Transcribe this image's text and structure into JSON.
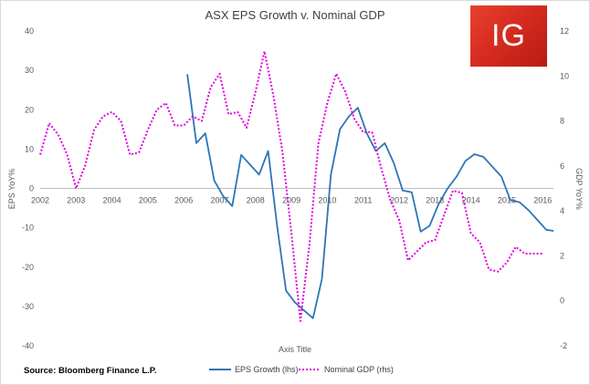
{
  "logo": {
    "text": "IG",
    "color": "#d7261a"
  },
  "source_note": "Source: Bloomberg Finance L.P.",
  "chart_data": {
    "type": "line",
    "title": "ASX EPS Growth v. Nominal GDP",
    "xlabel": "Axis Title",
    "ylabel": "EPS YoY%",
    "y2label": "GDP YoY%",
    "ylim": [
      -40,
      40
    ],
    "y2lim": [
      -2,
      12
    ],
    "xlim": [
      2002,
      2016.3
    ],
    "yticks": [
      "40",
      "30",
      "20",
      "10",
      "0",
      "-10",
      "-20",
      "-30",
      "-40"
    ],
    "yticks_values": [
      40,
      30,
      20,
      10,
      0,
      -10,
      -20,
      -30,
      -40
    ],
    "y2ticks": [
      "12",
      "10",
      "8",
      "6",
      "4",
      "2",
      "0",
      "-2"
    ],
    "y2ticks_values": [
      12,
      10,
      8,
      6,
      4,
      2,
      0,
      -2
    ],
    "xticks": [
      "2002",
      "2003",
      "2004",
      "2005",
      "2006",
      "2007",
      "2008",
      "2009",
      "2010",
      "2011",
      "2012",
      "2013",
      "2014",
      "2015",
      "2016"
    ],
    "xticks_values": [
      2002,
      2003,
      2004,
      2005,
      2006,
      2007,
      2008,
      2009,
      2010,
      2011,
      2012,
      2013,
      2014,
      2015,
      2016
    ],
    "legend_position": "bottom",
    "series": [
      {
        "name": "EPS Growth (lhs)",
        "axis": "left",
        "color": "#2e75b6",
        "style": "solid",
        "x": [
          2006.1,
          2006.35,
          2006.6,
          2006.85,
          2007.1,
          2007.35,
          2007.6,
          2007.85,
          2008.1,
          2008.35,
          2008.6,
          2008.85,
          2009.1,
          2009.6,
          2009.85,
          2010.1,
          2010.35,
          2010.6,
          2010.85,
          2011.1,
          2011.35,
          2011.6,
          2011.85,
          2012.1,
          2012.35,
          2012.6,
          2012.85,
          2013.1,
          2013.35,
          2013.6,
          2013.85,
          2014.1,
          2014.35,
          2014.6,
          2014.85,
          2015.1,
          2015.35,
          2015.6,
          2015.85,
          2016.1,
          2016.3
        ],
        "y": [
          29,
          11.5,
          14,
          2,
          -2,
          -4.5,
          8.5,
          6,
          3.5,
          9.5,
          -9.5,
          -26,
          -29,
          -33,
          -23,
          3.5,
          15,
          18.3,
          20.5,
          14,
          9.5,
          11.5,
          6.5,
          -0.5,
          -1,
          -11,
          -9.5,
          -4,
          0,
          3,
          7,
          8.7,
          8,
          5.5,
          3,
          -3,
          -3.5,
          -5.5,
          -8,
          -10.5,
          -10.8
        ]
      },
      {
        "name": "Nominal GDP (rhs)",
        "axis": "right",
        "color": "#e000e0",
        "style": "dotted",
        "x": [
          2002.0,
          2002.25,
          2002.5,
          2002.75,
          2003.0,
          2003.25,
          2003.5,
          2003.75,
          2004.0,
          2004.25,
          2004.5,
          2004.75,
          2005.0,
          2005.25,
          2005.5,
          2005.75,
          2006.0,
          2006.25,
          2006.5,
          2006.75,
          2007.0,
          2007.25,
          2007.5,
          2007.75,
          2008.0,
          2008.25,
          2008.5,
          2008.75,
          2009.0,
          2009.25,
          2009.5,
          2009.75,
          2010.0,
          2010.25,
          2010.5,
          2010.75,
          2011.0,
          2011.25,
          2011.5,
          2011.75,
          2012.0,
          2012.25,
          2012.5,
          2012.75,
          2013.0,
          2013.25,
          2013.5,
          2013.75,
          2014.0,
          2014.25,
          2014.5,
          2014.75,
          2015.0,
          2015.25,
          2015.5,
          2015.75,
          2016.0
        ],
        "y": [
          6.5,
          7.9,
          7.4,
          6.5,
          5.0,
          6.0,
          7.6,
          8.2,
          8.4,
          8.0,
          6.5,
          6.6,
          7.6,
          8.5,
          8.8,
          7.8,
          7.8,
          8.2,
          8.0,
          9.5,
          10.1,
          8.3,
          8.4,
          7.7,
          9.3,
          11.1,
          9.1,
          6.6,
          3.0,
          -0.9,
          2.5,
          7.0,
          8.8,
          10.1,
          9.3,
          8.1,
          7.5,
          7.5,
          5.9,
          4.5,
          3.6,
          1.8,
          2.2,
          2.6,
          2.7,
          3.8,
          4.9,
          4.8,
          3.0,
          2.6,
          1.4,
          1.3,
          1.7,
          2.4,
          2.1,
          2.1,
          2.1
        ]
      }
    ]
  }
}
